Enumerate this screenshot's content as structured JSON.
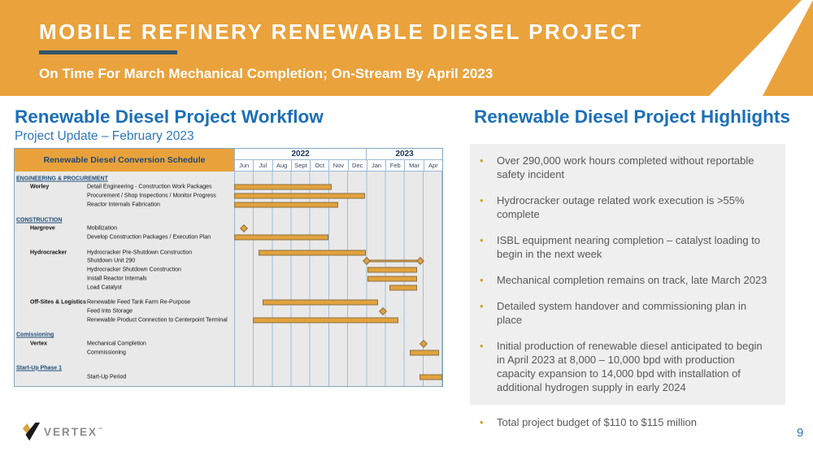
{
  "banner": {
    "title": "MOBILE REFINERY RENEWABLE DIESEL PROJECT",
    "subtitle": "On Time For March Mechanical Completion; On-Stream By April 2023",
    "background_color": "#EAA23C",
    "rule_color": "#33566B"
  },
  "workflow": {
    "title": "Renewable Diesel Project Workflow",
    "subtitle": "Project Update – February 2023"
  },
  "highlights": {
    "title": "Renewable Diesel Project Highlights",
    "bullet_char": "•",
    "bullet_color": "#C9A42C",
    "items": [
      "Over 290,000 work hours completed without reportable safety incident",
      "Hydrocracker outage related work execution is >55% complete",
      "ISBL equipment nearing completion – catalyst loading to begin in the next week",
      "Mechanical completion remains on track, late March 2023",
      " Detailed system handover and commissioning plan in place",
      "Initial production of renewable diesel anticipated to begin in April 2023 at 8,000 – 10,000 bpd with production capacity expansion to 14,000 bpd with installation of additional hydrogen supply in early 2024"
    ],
    "footer_item": "Total project budget of $110 to $115 million"
  },
  "footer": {
    "logo_text": "VERTEX",
    "logo_mark": "™",
    "page_number": "9"
  },
  "chart_data": {
    "type": "gantt",
    "title": "Renewable Diesel Conversion Schedule",
    "bar_color": "#E2A23C",
    "time_axis": {
      "unit": "month index from Jun 2022, range 0–11",
      "years": [
        {
          "label": "2022",
          "span_months": 7
        },
        {
          "label": "2023",
          "span_months": 4
        }
      ],
      "months": [
        "Jun",
        "Jul",
        "Aug",
        "Sept",
        "Oct",
        "Nov",
        "Dec",
        "Jan",
        "Feb",
        "Mar",
        "Apr"
      ]
    },
    "rows": [
      {
        "type": "section",
        "label": "ENGINEERING & PROCUREMENT"
      },
      {
        "type": "task",
        "owner": "Worley",
        "label": "Detail Engineering - Construction Work Packages",
        "bar": [
          0,
          5.15
        ]
      },
      {
        "type": "task",
        "label": "Procurement / Shop Inspections / Monitor Progress",
        "bar": [
          0,
          6.9
        ]
      },
      {
        "type": "task",
        "label": "Reactor Internals Fabrication",
        "bar": [
          0,
          5.5
        ]
      },
      {
        "type": "spacer"
      },
      {
        "type": "section",
        "label": "CONSTRUCTION"
      },
      {
        "type": "task",
        "owner": "Hargrove",
        "label": "Mobilization",
        "milestones": [
          0.5
        ]
      },
      {
        "type": "task",
        "label": "Develop Construction Packages / Execution Plan",
        "bar": [
          0,
          5.0
        ]
      },
      {
        "type": "spacer"
      },
      {
        "type": "task",
        "owner": "Hydrocracker",
        "label": "Hydrocracker Pre-Shutdown Construction",
        "bar": [
          1.3,
          6.95
        ]
      },
      {
        "type": "task",
        "label": "Shutdown Unit 290",
        "bar": [
          7.0,
          9.85
        ],
        "bar_style": "thin",
        "milestones": [
          7.0,
          9.85
        ]
      },
      {
        "type": "task",
        "label": "Hydrocracker Shutdown Construction",
        "bar": [
          7.05,
          9.65
        ]
      },
      {
        "type": "task",
        "label": "Install Reactor Internals",
        "bar": [
          7.05,
          9.65
        ]
      },
      {
        "type": "task",
        "label": "Load Catalyst",
        "bar": [
          8.2,
          9.65
        ]
      },
      {
        "type": "spacer"
      },
      {
        "type": "task",
        "owner": "Off-Sites & Logistics",
        "label": "Renewable Feed Tank Farm Re-Purpose",
        "bar": [
          1.5,
          7.6
        ]
      },
      {
        "type": "task",
        "label": "Feed Into Storage",
        "milestones": [
          7.85
        ]
      },
      {
        "type": "task",
        "label": "Renewable Product Connection to Centerpoint Terminal",
        "bar": [
          1.0,
          8.7
        ]
      },
      {
        "type": "spacer"
      },
      {
        "type": "section",
        "label": "Comissioning"
      },
      {
        "type": "task",
        "owner": "Vertex",
        "label": "Mechanical Completion",
        "milestones": [
          10.0
        ]
      },
      {
        "type": "task",
        "label": "Commissioning",
        "bar": [
          9.3,
          10.85
        ]
      },
      {
        "type": "spacer"
      },
      {
        "type": "section",
        "label": "Start-Up Phase 1"
      },
      {
        "type": "task",
        "label": "Start-Up Period",
        "bar": [
          9.8,
          11.0
        ]
      }
    ]
  }
}
